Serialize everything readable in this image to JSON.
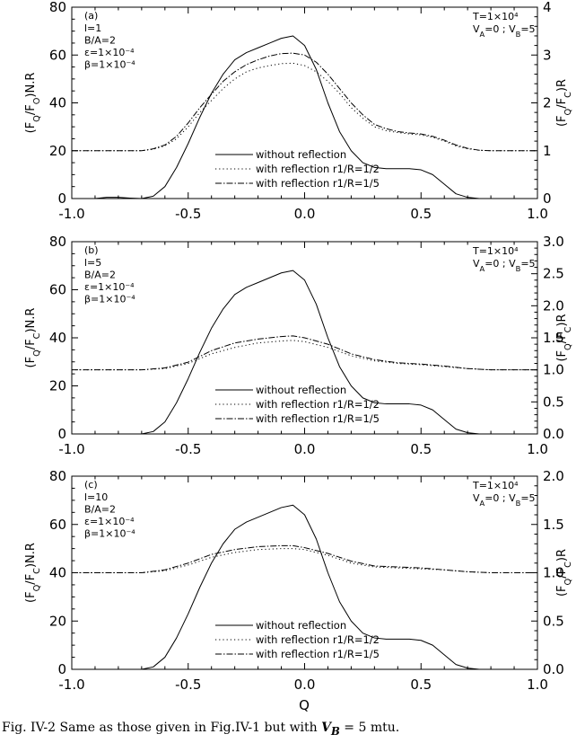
{
  "figure": {
    "caption_prefix": "Fig. IV-2 Same as those given in Fig.IV-1 but with ",
    "caption_var": "V",
    "caption_sub": "B",
    "caption_suffix": " = 5 mtu.",
    "xlabel": "Q"
  },
  "chart_data": [
    {
      "type": "line",
      "panel_label": "(a)",
      "params_left": [
        "l=1",
        "B/A=2",
        "ε=1×10⁻⁴",
        "β=1×10⁻⁴"
      ],
      "params_right": [
        "T=1×10⁴",
        "V_A=0 ; V_B=5"
      ],
      "ylabel_left": "(F_Q/F_O)N.R",
      "ylabel_right": "(F_Q/F_C)R",
      "xlim": [
        -1.0,
        1.0
      ],
      "ylim_left": [
        0,
        80
      ],
      "ylim_right": [
        0,
        4
      ],
      "x_ticks": [
        "-1.0",
        "-0.5",
        "0.0",
        "0.5",
        "1.0"
      ],
      "yl_ticks": [
        0,
        20,
        40,
        60,
        80
      ],
      "yr_ticks": [
        "0",
        "1",
        "2",
        "3",
        "4"
      ],
      "grid": false,
      "legend_position": "bottom-center",
      "series": [
        {
          "name": "without reflection",
          "axis": "left",
          "dash": "solid",
          "x": [
            -1.0,
            -0.95,
            -0.9,
            -0.85,
            -0.8,
            -0.75,
            -0.7,
            -0.65,
            -0.6,
            -0.55,
            -0.5,
            -0.45,
            -0.4,
            -0.35,
            -0.3,
            -0.25,
            -0.2,
            -0.15,
            -0.1,
            -0.05,
            0.0,
            0.05,
            0.1,
            0.15,
            0.2,
            0.25,
            0.3,
            0.35,
            0.4,
            0.45,
            0.5,
            0.55,
            0.6,
            0.65,
            0.7,
            0.75,
            0.8,
            0.85,
            0.9,
            0.95,
            1.0
          ],
          "y": [
            0,
            0,
            0,
            0.5,
            0.5,
            0.2,
            0,
            1,
            5,
            13,
            23,
            34,
            44,
            52,
            58,
            61,
            63,
            65,
            67,
            68,
            64,
            54,
            40,
            28,
            20,
            15,
            13,
            12.5,
            12.5,
            12.5,
            12,
            10,
            6,
            2,
            0.5,
            0,
            0,
            0,
            0,
            0,
            0
          ]
        },
        {
          "name": "with reflection r1/R=1/2",
          "axis": "right",
          "dash": "dotted",
          "x": [
            -1.0,
            -0.9,
            -0.8,
            -0.7,
            -0.65,
            -0.6,
            -0.55,
            -0.5,
            -0.45,
            -0.4,
            -0.35,
            -0.3,
            -0.25,
            -0.2,
            -0.15,
            -0.1,
            -0.05,
            0.0,
            0.05,
            0.1,
            0.15,
            0.2,
            0.25,
            0.3,
            0.35,
            0.4,
            0.45,
            0.5,
            0.55,
            0.6,
            0.65,
            0.7,
            0.75,
            0.8,
            0.9,
            1.0
          ],
          "y": [
            1.0,
            1.0,
            1.0,
            1.0,
            1.03,
            1.1,
            1.25,
            1.5,
            1.8,
            2.05,
            2.3,
            2.5,
            2.65,
            2.73,
            2.78,
            2.82,
            2.83,
            2.78,
            2.65,
            2.45,
            2.2,
            1.9,
            1.68,
            1.5,
            1.42,
            1.38,
            1.35,
            1.33,
            1.28,
            1.2,
            1.1,
            1.04,
            1.01,
            1.0,
            1.0,
            1.0
          ]
        },
        {
          "name": "with reflection r1/R=1/5",
          "axis": "right",
          "dash": "dash-dot",
          "x": [
            -1.0,
            -0.9,
            -0.8,
            -0.7,
            -0.65,
            -0.6,
            -0.55,
            -0.5,
            -0.45,
            -0.4,
            -0.35,
            -0.3,
            -0.25,
            -0.2,
            -0.15,
            -0.1,
            -0.05,
            0.0,
            0.05,
            0.1,
            0.15,
            0.2,
            0.25,
            0.3,
            0.35,
            0.4,
            0.45,
            0.5,
            0.55,
            0.6,
            0.65,
            0.7,
            0.75,
            0.8,
            0.9,
            1.0
          ],
          "y": [
            1.0,
            1.0,
            1.0,
            1.0,
            1.04,
            1.12,
            1.3,
            1.58,
            1.9,
            2.18,
            2.45,
            2.65,
            2.8,
            2.9,
            2.98,
            3.03,
            3.04,
            3.0,
            2.85,
            2.6,
            2.3,
            2.0,
            1.75,
            1.55,
            1.46,
            1.4,
            1.37,
            1.35,
            1.3,
            1.22,
            1.12,
            1.05,
            1.01,
            1.0,
            1.0,
            1.0
          ]
        }
      ]
    },
    {
      "type": "line",
      "panel_label": "(b)",
      "params_left": [
        "l=5",
        "B/A=2",
        "ε=1×10⁻⁴",
        "β=1×10⁻⁴"
      ],
      "params_right": [
        "T=1×10⁴",
        "V_A=0 ; V_B=5"
      ],
      "ylabel_left": "(F_Q/F_C)N.R",
      "ylabel_right": "(F_Q/F_C)R",
      "xlim": [
        -1.0,
        1.0
      ],
      "ylim_left": [
        0,
        80
      ],
      "ylim_right": [
        0,
        3
      ],
      "x_ticks": [
        "-1.0",
        "-0.5",
        "0.0",
        "0.5",
        "1.0"
      ],
      "yl_ticks": [
        0,
        20,
        40,
        60,
        80
      ],
      "yr_ticks": [
        "0.0",
        "0.5",
        "1.0",
        "1.5",
        "2.0",
        "2.5",
        "3.0"
      ],
      "grid": false,
      "legend_position": "bottom-center",
      "series": [
        {
          "name": "without reflection",
          "axis": "left",
          "dash": "solid",
          "x": [
            -1.0,
            -0.9,
            -0.8,
            -0.7,
            -0.65,
            -0.6,
            -0.55,
            -0.5,
            -0.45,
            -0.4,
            -0.35,
            -0.3,
            -0.25,
            -0.2,
            -0.15,
            -0.1,
            -0.05,
            0.0,
            0.05,
            0.1,
            0.15,
            0.2,
            0.25,
            0.3,
            0.35,
            0.4,
            0.45,
            0.5,
            0.55,
            0.6,
            0.65,
            0.7,
            0.75,
            0.8,
            0.9,
            1.0
          ],
          "y": [
            0,
            0,
            0,
            0,
            1,
            5,
            13,
            23,
            34,
            44,
            52,
            58,
            61,
            63,
            65,
            67,
            68,
            64,
            54,
            40,
            28,
            20,
            15,
            13,
            12.5,
            12.5,
            12.5,
            12,
            10,
            6,
            2,
            0.5,
            0,
            0,
            0,
            0
          ]
        },
        {
          "name": "with reflection r1/R=1/2",
          "axis": "right",
          "dash": "dotted",
          "x": [
            -1.0,
            -0.9,
            -0.8,
            -0.7,
            -0.6,
            -0.5,
            -0.4,
            -0.3,
            -0.2,
            -0.1,
            -0.05,
            0.0,
            0.1,
            0.2,
            0.3,
            0.4,
            0.5,
            0.6,
            0.7,
            0.8,
            0.9,
            1.0
          ],
          "y": [
            1.0,
            1.0,
            1.0,
            1.0,
            1.02,
            1.1,
            1.25,
            1.35,
            1.42,
            1.45,
            1.46,
            1.44,
            1.35,
            1.22,
            1.14,
            1.1,
            1.08,
            1.05,
            1.02,
            1.0,
            1.0,
            1.0
          ]
        },
        {
          "name": "with reflection r1/R=1/5",
          "axis": "right",
          "dash": "dash-dot",
          "x": [
            -1.0,
            -0.9,
            -0.8,
            -0.7,
            -0.6,
            -0.5,
            -0.4,
            -0.3,
            -0.2,
            -0.1,
            -0.05,
            0.0,
            0.1,
            0.2,
            0.3,
            0.4,
            0.5,
            0.6,
            0.7,
            0.8,
            0.9,
            1.0
          ],
          "y": [
            1.0,
            1.0,
            1.0,
            1.0,
            1.03,
            1.12,
            1.3,
            1.42,
            1.48,
            1.52,
            1.53,
            1.5,
            1.4,
            1.25,
            1.16,
            1.11,
            1.09,
            1.06,
            1.02,
            1.0,
            1.0,
            1.0
          ]
        }
      ]
    },
    {
      "type": "line",
      "panel_label": "(c)",
      "params_left": [
        "l=10",
        "B/A=2",
        "ε=1×10⁻⁴",
        "β=1×10⁻⁴"
      ],
      "params_right": [
        "T=1×10⁴",
        "V_A=0 ; V_B=5"
      ],
      "ylabel_left": "(F_Q/F_C)N.R",
      "ylabel_right": "(F_Q/F_C)R",
      "xlim": [
        -1.0,
        1.0
      ],
      "ylim_left": [
        0,
        80
      ],
      "ylim_right": [
        0,
        2
      ],
      "x_ticks": [
        "-1.0",
        "-0.5",
        "0.0",
        "0.5",
        "1.0"
      ],
      "yl_ticks": [
        0,
        20,
        40,
        60,
        80
      ],
      "yr_ticks": [
        "0.0",
        "0.5",
        "1.0",
        "1.5",
        "2.0"
      ],
      "grid": false,
      "legend_position": "bottom-center",
      "series": [
        {
          "name": "without reflection",
          "axis": "left",
          "dash": "solid",
          "x": [
            -1.0,
            -0.9,
            -0.8,
            -0.7,
            -0.65,
            -0.6,
            -0.55,
            -0.5,
            -0.45,
            -0.4,
            -0.35,
            -0.3,
            -0.25,
            -0.2,
            -0.15,
            -0.1,
            -0.05,
            0.0,
            0.05,
            0.1,
            0.15,
            0.2,
            0.25,
            0.3,
            0.35,
            0.4,
            0.45,
            0.5,
            0.55,
            0.6,
            0.65,
            0.7,
            0.75,
            0.8,
            0.9,
            1.0
          ],
          "y": [
            0,
            0,
            0,
            0,
            1,
            5,
            13,
            23,
            34,
            44,
            52,
            58,
            61,
            63,
            65,
            67,
            68,
            64,
            54,
            40,
            28,
            20,
            15,
            13,
            12.5,
            12.5,
            12.5,
            12,
            10,
            6,
            2,
            0.5,
            0,
            0,
            0,
            0
          ]
        },
        {
          "name": "with reflection r1/R=1/2",
          "axis": "right",
          "dash": "dotted",
          "x": [
            -1.0,
            -0.9,
            -0.8,
            -0.7,
            -0.6,
            -0.5,
            -0.4,
            -0.3,
            -0.2,
            -0.1,
            -0.05,
            0.0,
            0.1,
            0.2,
            0.3,
            0.4,
            0.5,
            0.6,
            0.7,
            0.8,
            0.9,
            1.0
          ],
          "y": [
            1.0,
            1.0,
            1.0,
            1.0,
            1.02,
            1.08,
            1.16,
            1.21,
            1.24,
            1.25,
            1.25,
            1.24,
            1.18,
            1.1,
            1.06,
            1.05,
            1.04,
            1.03,
            1.01,
            1.0,
            1.0,
            1.0
          ]
        },
        {
          "name": "with reflection r1/R=1/5",
          "axis": "right",
          "dash": "dash-dot",
          "x": [
            -1.0,
            -0.9,
            -0.8,
            -0.7,
            -0.6,
            -0.5,
            -0.4,
            -0.3,
            -0.2,
            -0.1,
            -0.05,
            0.0,
            0.1,
            0.2,
            0.3,
            0.4,
            0.5,
            0.6,
            0.7,
            0.8,
            0.9,
            1.0
          ],
          "y": [
            1.0,
            1.0,
            1.0,
            1.0,
            1.03,
            1.1,
            1.19,
            1.24,
            1.27,
            1.28,
            1.28,
            1.26,
            1.2,
            1.12,
            1.07,
            1.06,
            1.05,
            1.03,
            1.01,
            1.0,
            1.0,
            1.0
          ]
        }
      ]
    }
  ]
}
